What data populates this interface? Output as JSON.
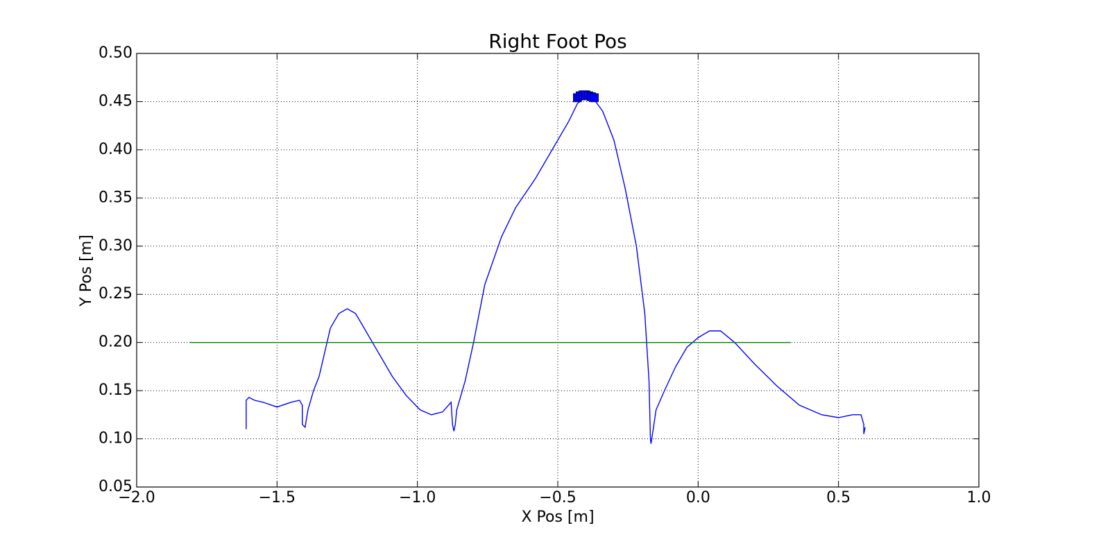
{
  "chart_data": {
    "type": "line",
    "title": "Right Foot Pos",
    "xlabel": "X Pos [m]",
    "ylabel": "Y Pos [m]",
    "xlim": [
      -2,
      1
    ],
    "ylim": [
      0.05,
      0.5
    ],
    "grid": true,
    "xticks": [
      {
        "value": -2,
        "label": "−2.0"
      },
      {
        "value": -1.5,
        "label": "−1.5"
      },
      {
        "value": -1,
        "label": "−1.0"
      },
      {
        "value": -0.5,
        "label": "−0.5"
      },
      {
        "value": 0,
        "label": "0.0"
      },
      0.5,
      {
        "value": 1,
        "label": "1.0"
      }
    ],
    "yticks": [
      0.05,
      {
        "value": 0.1,
        "label": "0.10"
      },
      0.15,
      {
        "value": 0.2,
        "label": "0.20"
      },
      0.25,
      {
        "value": 0.3,
        "label": "0.30"
      },
      0.35,
      {
        "value": 0.4,
        "label": "0.40"
      },
      0.45,
      {
        "value": 0.5,
        "label": "0.50"
      }
    ],
    "series": [
      {
        "color": "#0000ff",
        "x": [
          -1.61,
          -1.61,
          -1.6,
          -1.58,
          -1.55,
          -1.52,
          -1.5,
          -1.47,
          -1.45,
          -1.42,
          -1.41,
          -1.41,
          -1.4,
          -1.39,
          -1.37,
          -1.35,
          -1.33,
          -1.31,
          -1.28,
          -1.25,
          -1.22,
          -1.18,
          -1.14,
          -1.09,
          -1.04,
          -0.99,
          -0.95,
          -0.91,
          -0.88,
          -0.875,
          -0.87,
          -0.865,
          -0.86,
          -0.83,
          -0.8,
          -0.76,
          -0.7,
          -0.65,
          -0.58,
          -0.52,
          -0.46,
          -0.43,
          -0.4,
          -0.37,
          -0.34,
          -0.3,
          -0.26,
          -0.22,
          -0.19,
          -0.175,
          -0.17,
          -0.168,
          -0.16,
          -0.15,
          -0.12,
          -0.08,
          -0.04,
          0.0,
          0.04,
          0.08,
          0.13,
          0.2,
          0.28,
          0.36,
          0.44,
          0.5,
          0.55,
          0.58,
          0.59,
          0.59,
          0.595
        ],
        "values": [
          0.11,
          0.14,
          0.143,
          0.14,
          0.138,
          0.135,
          0.133,
          0.136,
          0.138,
          0.14,
          0.135,
          0.115,
          0.112,
          0.13,
          0.15,
          0.165,
          0.19,
          0.215,
          0.23,
          0.235,
          0.23,
          0.21,
          0.19,
          0.165,
          0.145,
          0.13,
          0.125,
          0.128,
          0.138,
          0.115,
          0.108,
          0.115,
          0.13,
          0.16,
          0.2,
          0.26,
          0.31,
          0.34,
          0.37,
          0.4,
          0.43,
          0.448,
          0.455,
          0.452,
          0.44,
          0.41,
          0.36,
          0.3,
          0.23,
          0.16,
          0.1,
          0.095,
          0.11,
          0.13,
          0.15,
          0.175,
          0.195,
          0.205,
          0.212,
          0.212,
          0.2,
          0.178,
          0.155,
          0.135,
          0.125,
          0.122,
          0.125,
          0.125,
          0.115,
          0.105,
          0.112
        ]
      },
      {
        "color": "#008000",
        "x": [
          -1.81,
          0.33
        ],
        "values": [
          0.2,
          0.2
        ]
      },
      {
        "color": "#0000ff",
        "marker": "square",
        "x": [
          -0.43,
          -0.42,
          -0.41,
          -0.4,
          -0.39,
          -0.38,
          -0.37
        ],
        "values": [
          0.454,
          0.456,
          0.457,
          0.457,
          0.456,
          0.455,
          0.454
        ]
      }
    ]
  }
}
